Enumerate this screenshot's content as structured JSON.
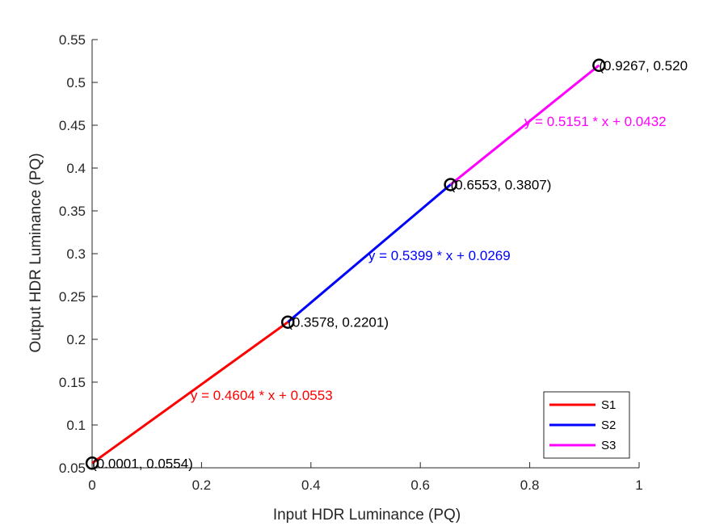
{
  "chart_data": {
    "type": "line",
    "xlabel": "Input HDR Luminance (PQ)",
    "ylabel": "Output HDR Luminance (PQ)",
    "xlim": [
      0,
      1
    ],
    "ylim": [
      0.05,
      0.55
    ],
    "xticks": [
      "0",
      "0.2",
      "0.4",
      "0.6",
      "0.8",
      "1"
    ],
    "xtick_values": [
      0,
      0.2,
      0.4,
      0.6,
      0.8,
      1
    ],
    "yticks": [
      "0.05",
      "0.1",
      "0.15",
      "0.2",
      "0.25",
      "0.3",
      "0.35",
      "0.4",
      "0.45",
      "0.5",
      "0.55"
    ],
    "ytick_values": [
      0.05,
      0.1,
      0.15,
      0.2,
      0.25,
      0.3,
      0.35,
      0.4,
      0.45,
      0.5,
      0.55
    ],
    "grid": false,
    "legend_position": "bottom-right",
    "series": [
      {
        "name": "S1",
        "color": "#ff0000",
        "x": [
          0.0001,
          0.3578
        ],
        "y": [
          0.0554,
          0.2201
        ],
        "equation": "y = 0.4604 * x + 0.0553",
        "equation_pos": [
          0.18,
          0.135
        ]
      },
      {
        "name": "S2",
        "color": "#0000ff",
        "x": [
          0.3578,
          0.6553
        ],
        "y": [
          0.2201,
          0.3807
        ],
        "equation": "y = 0.5399 * x + 0.0269",
        "equation_pos": [
          0.505,
          0.298
        ]
      },
      {
        "name": "S3",
        "color": "#ff00ff",
        "x": [
          0.6553,
          0.9267
        ],
        "y": [
          0.3807,
          0.52
        ],
        "equation": "y = 0.5151 * x + 0.0432",
        "equation_pos": [
          0.79,
          0.4545
        ]
      }
    ],
    "points": [
      {
        "x": 0.0001,
        "y": 0.0554,
        "label": "(0.0001, 0.0554)"
      },
      {
        "x": 0.3578,
        "y": 0.2201,
        "label": "(0.3578, 0.2201)"
      },
      {
        "x": 0.6553,
        "y": 0.3807,
        "label": "(0.6553, 0.3807)"
      },
      {
        "x": 0.9267,
        "y": 0.52,
        "label": "(0.9267, 0.520"
      }
    ]
  }
}
